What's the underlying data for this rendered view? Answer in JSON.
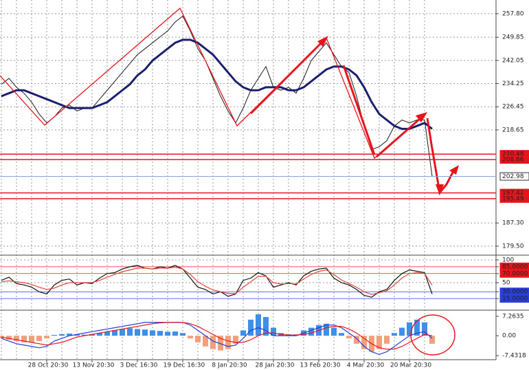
{
  "chart_data": [
    {
      "type": "line",
      "categories": [
        null,
        null,
        null,
        null,
        null,
        null,
        "28 Oct 20:30",
        null,
        null,
        null,
        null,
        null,
        "13 Nov 20:30",
        null,
        null,
        null,
        null,
        null,
        "3 Dec 16:30",
        null,
        null,
        null,
        null,
        null,
        "19 Dec 16:30",
        null,
        null,
        null,
        null,
        null,
        "8 Jan 20:30",
        null,
        null,
        null,
        null,
        null,
        "28 Jan 20:30",
        null,
        null,
        null,
        null,
        null,
        "13 Feb 20:30",
        null,
        null,
        null,
        null,
        null,
        "4 Mar 20:30",
        null,
        null,
        null,
        null,
        null,
        "20 Mar 20:30",
        null,
        null,
        null
      ],
      "series": [
        {
          "color": "#1a1a1a",
          "values": [
            234,
            236,
            233,
            231,
            228,
            224,
            221,
            223,
            226,
            227,
            225,
            226,
            226,
            229,
            232,
            235,
            238,
            241,
            244,
            246,
            248,
            250,
            252,
            255,
            257,
            252,
            246,
            242,
            236,
            230,
            225,
            221,
            226,
            232,
            236,
            240,
            233,
            232,
            233,
            231,
            236,
            242,
            245,
            248,
            244,
            240,
            238,
            230,
            220,
            212,
            213,
            215,
            220,
            222,
            221,
            222,
            222,
            203
          ]
        },
        {
          "color": "#1b1f6e",
          "values": [
            230,
            231,
            232,
            232,
            231,
            230,
            229,
            228,
            227,
            226,
            226,
            226,
            226,
            227,
            228,
            230,
            232,
            234,
            237,
            239,
            242,
            244,
            246,
            248,
            249,
            249,
            248,
            246,
            244,
            241,
            238,
            235,
            233,
            232,
            232,
            233,
            233,
            233,
            232,
            232,
            233,
            235,
            237,
            239,
            240,
            240,
            239,
            237,
            233,
            228,
            224,
            222,
            220,
            219,
            219,
            220,
            221,
            219
          ]
        }
      ],
      "ylim": [
        176.7,
        262.4
      ],
      "yticks": [
        {
          "value": 257.8,
          "label": "257.80"
        },
        249.85,
        242.05,
        234.25,
        226.45,
        218.65,
        {
          "value": 187.3,
          "label": "187.30"
        },
        {
          "value": 179.5,
          "label": "179.50"
        }
      ],
      "levels": [
        210.48,
        208.66,
        197.42,
        195.49
      ],
      "level_color": "#e8141c",
      "last_price": 202.98,
      "last_color": "#8aa0d8",
      "grid": true
    },
    {
      "type": "line",
      "series": [
        {
          "color": "#111111",
          "values": [
            55,
            62,
            48,
            45,
            40,
            30,
            25,
            45,
            55,
            58,
            45,
            50,
            48,
            60,
            70,
            72,
            80,
            85,
            88,
            82,
            80,
            85,
            82,
            88,
            80,
            60,
            40,
            35,
            25,
            30,
            20,
            25,
            55,
            60,
            72,
            65,
            40,
            45,
            50,
            45,
            65,
            75,
            80,
            82,
            60,
            50,
            45,
            35,
            22,
            18,
            30,
            35,
            55,
            70,
            78,
            75,
            72,
            25
          ]
        },
        {
          "color": "#e0463c",
          "values": [
            52,
            54,
            52,
            50,
            46,
            40,
            35,
            38,
            45,
            50,
            50,
            50,
            50,
            55,
            62,
            68,
            74,
            78,
            82,
            82,
            80,
            82,
            82,
            84,
            80,
            68,
            52,
            42,
            34,
            30,
            26,
            26,
            40,
            52,
            64,
            64,
            50,
            47,
            48,
            47,
            58,
            68,
            75,
            78,
            68,
            56,
            48,
            40,
            30,
            24,
            28,
            32,
            45,
            60,
            70,
            72,
            70,
            45
          ]
        }
      ],
      "ylim": [
        -9,
        109
      ],
      "yticks": [
        100,
        {
          "value": 85,
          "label": "85.0000"
        },
        {
          "value": 70,
          "label": "70.0000"
        },
        50,
        {
          "value": 30,
          "label": "30.0000"
        },
        {
          "value": 15,
          "label": "15.0000"
        }
      ],
      "tick_colors": [
        "#999999",
        "#e8141c",
        "#e8141c",
        "#999999",
        "#2a3fd8",
        "#2a3fd8"
      ]
    },
    {
      "type": "bar",
      "values": [
        -1,
        -1.5,
        -2,
        -2.5,
        -2.5,
        -2,
        -1,
        0.3,
        0.6,
        0.8,
        0.5,
        0.4,
        0.5,
        1,
        1.5,
        2,
        2.5,
        2.8,
        2.5,
        2.3,
        2,
        1.8,
        1.5,
        1.6,
        1,
        -1,
        -2.5,
        -4,
        -5,
        -5.5,
        -5,
        -3,
        2,
        6,
        8,
        7,
        3,
        1,
        0.5,
        0.5,
        2,
        3,
        4,
        4.5,
        3,
        1,
        -1,
        -3,
        -5,
        -6,
        -5,
        -3,
        1,
        3,
        5,
        6,
        5,
        -3
      ],
      "pos_color": "#3d8fe8",
      "neg_color": "#f2a07c",
      "series": [
        {
          "color": "#1f3fd6",
          "values": [
            -1,
            -2,
            -3,
            -3.5,
            -4,
            -4.5,
            -4,
            -2,
            -1,
            0,
            0.5,
            1,
            1.5,
            2,
            2.5,
            3,
            3.5,
            4,
            4.5,
            5,
            5,
            5,
            5,
            5,
            5,
            4,
            2,
            0,
            -2,
            -3,
            -4,
            -3.5,
            -1,
            2,
            3,
            2,
            0,
            0,
            0,
            0,
            1,
            2,
            3,
            4,
            4,
            3,
            1,
            -1,
            -4,
            -6,
            -7,
            -6,
            -4,
            -2,
            0,
            1,
            1.5,
            -1
          ]
        },
        {
          "color": "#e8141c",
          "values": [
            -0.5,
            -1,
            -1.5,
            -2,
            -2.5,
            -3,
            -3.5,
            -3,
            -2.5,
            -1.5,
            -0.5,
            0,
            0.5,
            1,
            1.5,
            2,
            2.5,
            3,
            3.5,
            4,
            4.5,
            4.8,
            5,
            5,
            5,
            4.5,
            3.5,
            2,
            0.5,
            -1,
            -2,
            -2.5,
            -2.5,
            -1.5,
            0,
            1,
            1,
            0.5,
            0.3,
            0.2,
            0.5,
            1,
            2,
            3,
            3.5,
            3.5,
            2.5,
            1,
            -1,
            -3,
            -4.5,
            -5,
            -5,
            -4,
            -2.5,
            -1,
            0.5,
            0
          ]
        }
      ],
      "ylim": [
        -8.7,
        9.3
      ],
      "yticks": [
        {
          "value": 7.2635,
          "label": "7.2635"
        },
        {
          "value": 0,
          "label": "0.00"
        },
        {
          "value": -7.4318,
          "label": "-7.4318"
        }
      ]
    }
  ]
}
